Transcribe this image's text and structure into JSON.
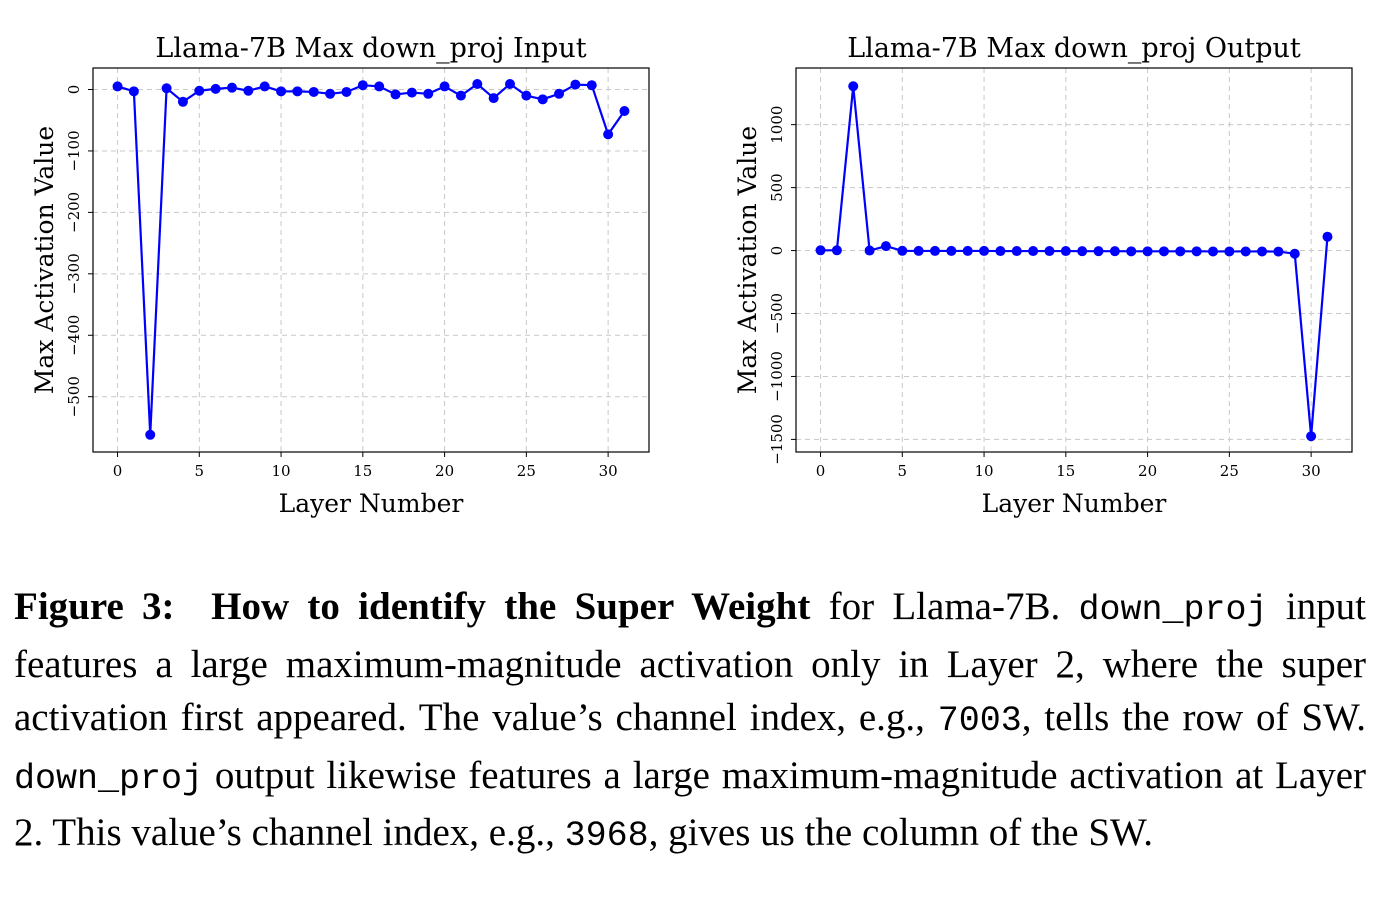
{
  "chart_data": [
    {
      "type": "line",
      "title": "Llama-7B Max down_proj Input",
      "xlabel": "Layer Number",
      "ylabel": "Max Activation Value",
      "x": [
        0,
        1,
        2,
        3,
        4,
        5,
        6,
        7,
        8,
        9,
        10,
        11,
        12,
        13,
        14,
        15,
        16,
        17,
        18,
        19,
        20,
        21,
        22,
        23,
        24,
        25,
        26,
        27,
        28,
        29,
        30,
        31
      ],
      "values": [
        5,
        -3,
        -562,
        2,
        -20,
        -2,
        1,
        3,
        -2,
        5,
        -3,
        -3,
        -4,
        -7,
        -4,
        7,
        5,
        -8,
        -5,
        -7,
        5,
        -10,
        9,
        -14,
        9,
        -10,
        -16,
        -7,
        8,
        7,
        -73,
        -35
      ],
      "xticks": [
        0,
        5,
        10,
        15,
        20,
        25,
        30
      ],
      "yticks": [
        0,
        -100,
        -200,
        -300,
        -400,
        -500
      ],
      "xlim": [
        -1.5,
        32.5
      ],
      "ylim": [
        -590,
        35
      ],
      "grid": true,
      "color": "#0000ff"
    },
    {
      "type": "line",
      "title": "Llama-7B Max down_proj Output",
      "xlabel": "Layer Number",
      "ylabel": "Max Activation Value",
      "x": [
        0,
        1,
        2,
        3,
        4,
        5,
        6,
        7,
        8,
        9,
        10,
        11,
        12,
        13,
        14,
        15,
        16,
        17,
        18,
        19,
        20,
        21,
        22,
        23,
        24,
        25,
        26,
        27,
        28,
        29,
        30,
        31
      ],
      "values": [
        2,
        2,
        1305,
        0,
        35,
        -2,
        -3,
        -3,
        -3,
        -3,
        -3,
        -4,
        -4,
        -4,
        -4,
        -4,
        -5,
        -5,
        -5,
        -6,
        -6,
        -6,
        -6,
        -6,
        -7,
        -7,
        -7,
        -7,
        -8,
        -25,
        -1475,
        110
      ],
      "xticks": [
        0,
        5,
        10,
        15,
        20,
        25,
        30
      ],
      "yticks": [
        1000,
        500,
        0,
        -500,
        -1000,
        -1500
      ],
      "xlim": [
        -1.5,
        32.5
      ],
      "ylim": [
        -1600,
        1450
      ],
      "grid": true,
      "color": "#0000ff"
    }
  ],
  "caption": {
    "label": "Figure 3:",
    "bold_title": "How to identify the Super Weight",
    "t1": " for Llama-7B. ",
    "m1": "down_proj",
    "t2": " input features a large maximum-magnitude activation only in Layer 2, where the super activation first appeared. The value’s channel index, e.g., ",
    "m2": "7003",
    "t3": ", tells the row of SW. ",
    "m3": "down_proj",
    "t4": " output likewise features a large maximum-magnitude activation at Layer 2. This value’s channel index, e.g., ",
    "m4": "3968",
    "t5": ", gives us the column of the SW."
  }
}
